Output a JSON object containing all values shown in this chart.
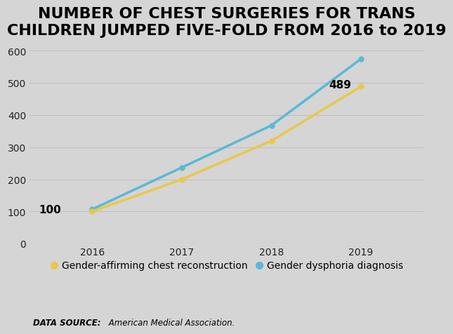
{
  "title_line1": "NUMBER OF CHEST SURGERIES FOR TRANS",
  "title_line2": "CHILDREN JUMPED FIVE-FOLD FROM 2016 to 2019",
  "years": [
    2016,
    2017,
    2018,
    2019
  ],
  "gold_values": [
    100,
    200,
    320,
    489
  ],
  "blue_values": [
    107,
    237,
    368,
    575
  ],
  "gold_color": "#E8C84A",
  "blue_color": "#5BB8D4",
  "background_color": "#D5D5D5",
  "ylim": [
    0,
    620
  ],
  "yticks": [
    0,
    100,
    200,
    300,
    400,
    500,
    600
  ],
  "xlim": [
    2015.3,
    2019.7
  ],
  "legend_gold": "Gender-affirming chest reconstruction",
  "legend_blue": "Gender dysphoria diagnosis",
  "annotation_2016": "100",
  "annotation_2019": "489",
  "datasource_bold": "DATA SOURCE:",
  "datasource_normal": " American Medical Association.",
  "title_fontsize": 16,
  "tick_fontsize": 10,
  "legend_fontsize": 10,
  "datasource_fontsize": 8.5,
  "annotation_fontsize": 11,
  "linewidth": 2.5,
  "markersize": 5
}
